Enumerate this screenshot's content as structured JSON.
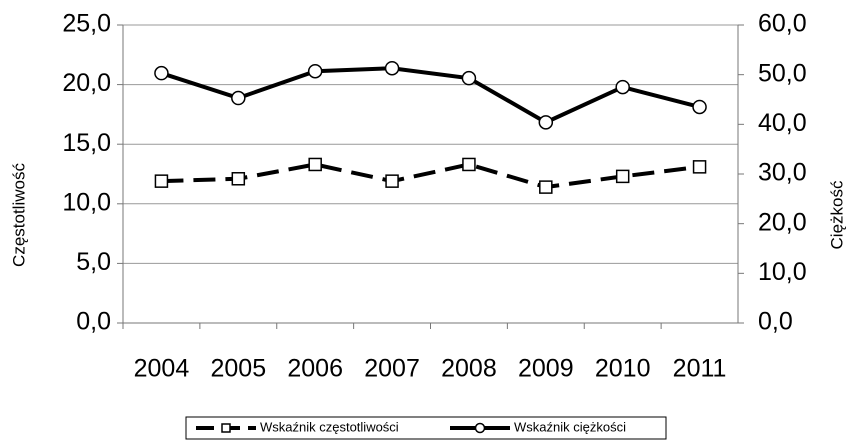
{
  "chart_data": {
    "type": "line",
    "categories": [
      "2004",
      "2005",
      "2006",
      "2007",
      "2008",
      "2009",
      "2010",
      "2011"
    ],
    "y_label": "Częstotliwość",
    "y2_label": "Ciężkość",
    "ylim": [
      0,
      25
    ],
    "yticks": [
      {
        "value": 0,
        "label": "0,0"
      },
      {
        "value": 5,
        "label": "5,0"
      },
      {
        "value": 10,
        "label": "10,0"
      },
      {
        "value": 15,
        "label": "15,0"
      },
      {
        "value": 20,
        "label": "20,0"
      },
      {
        "value": 25,
        "label": "25,0"
      }
    ],
    "y2lim": [
      0,
      60
    ],
    "y2ticks": [
      {
        "value": 0,
        "label": "0,0"
      },
      {
        "value": 10,
        "label": "10,0"
      },
      {
        "value": 20,
        "label": "20,0"
      },
      {
        "value": 30,
        "label": "30,0"
      },
      {
        "value": 40,
        "label": "40,0"
      },
      {
        "value": 50,
        "label": "50,0"
      },
      {
        "value": 60,
        "label": "60,0"
      }
    ],
    "grid": true,
    "series": [
      {
        "name": "Wskaźnik częstotliwości",
        "color": "#000000",
        "dashed": true,
        "marker": "square",
        "values": [
          11.9,
          12.1,
          13.3,
          11.9,
          13.3,
          11.4,
          12.3,
          13.1
        ]
      },
      {
        "name": "Wskaźnik ciężkości",
        "color": "#000000",
        "dashed": false,
        "marker": "circle",
        "axis": "y2",
        "values": [
          50.3,
          45.3,
          50.7,
          51.3,
          49.3,
          40.4,
          47.5,
          43.5
        ]
      }
    ]
  }
}
